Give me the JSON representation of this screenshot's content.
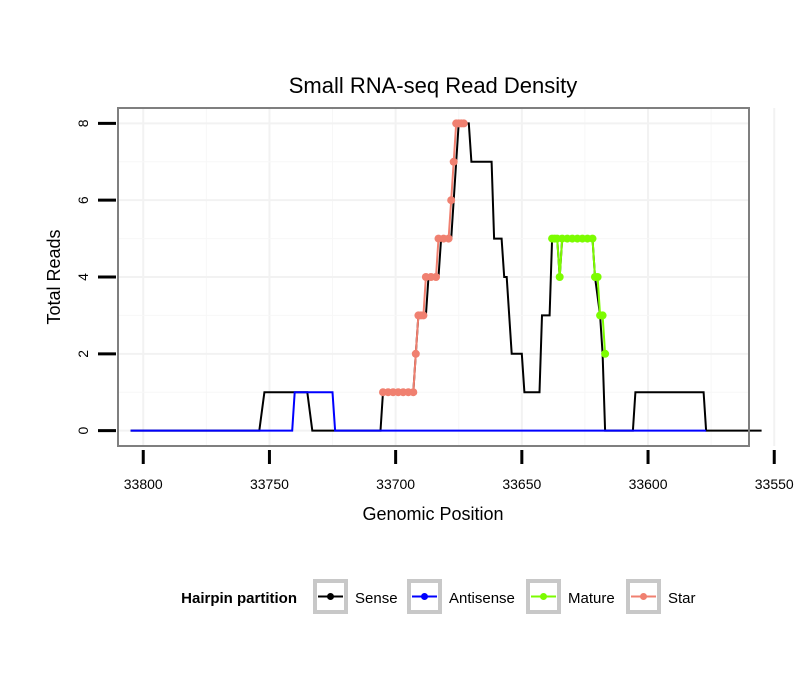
{
  "chart_data": {
    "type": "line",
    "title": "Small RNA-seq Read Density",
    "xlabel": "Genomic Position",
    "ylabel": "Total Reads",
    "xlim": [
      33560,
      33810
    ],
    "ylim": [
      -0.4,
      8.4
    ],
    "x_reversed": true,
    "xticks": [
      33800,
      33750,
      33700,
      33650,
      33600,
      33550
    ],
    "yticks": [
      0,
      2,
      4,
      6,
      8
    ],
    "legend": {
      "title": "Hairpin partition",
      "placement": "bottom",
      "entries": [
        "Sense",
        "Antisense",
        "Mature",
        "Star"
      ]
    },
    "series": [
      {
        "name": "Sense",
        "color": "#000000",
        "style": "line",
        "points": [
          [
            33805,
            0
          ],
          [
            33754,
            0
          ],
          [
            33752,
            1
          ],
          [
            33735,
            1
          ],
          [
            33733,
            0
          ],
          [
            33706,
            0
          ],
          [
            33705,
            1
          ],
          [
            33693,
            1
          ],
          [
            33692,
            2
          ],
          [
            33691,
            3
          ],
          [
            33688,
            3
          ],
          [
            33687,
            4
          ],
          [
            33683,
            4
          ],
          [
            33682,
            5
          ],
          [
            33678,
            5
          ],
          [
            33677,
            6
          ],
          [
            33676,
            7
          ],
          [
            33675,
            8
          ],
          [
            33673,
            8
          ],
          [
            33671,
            8
          ],
          [
            33670,
            7
          ],
          [
            33662,
            7
          ],
          [
            33661,
            5
          ],
          [
            33658,
            5
          ],
          [
            33657,
            4
          ],
          [
            33656,
            4
          ],
          [
            33655,
            3
          ],
          [
            33654,
            2
          ],
          [
            33650,
            2
          ],
          [
            33649,
            1
          ],
          [
            33643,
            1
          ],
          [
            33642,
            3
          ],
          [
            33639,
            3
          ],
          [
            33638,
            5
          ],
          [
            33636,
            5
          ],
          [
            33635,
            4
          ],
          [
            33634,
            5
          ],
          [
            33622,
            5
          ],
          [
            33621,
            4
          ],
          [
            33619,
            3
          ],
          [
            33618,
            2
          ],
          [
            33617,
            0
          ],
          [
            33606,
            0
          ],
          [
            33605,
            1
          ],
          [
            33578,
            1
          ],
          [
            33577,
            0
          ],
          [
            33555,
            0
          ]
        ]
      },
      {
        "name": "Antisense",
        "color": "#0000ff",
        "style": "line",
        "points": [
          [
            33805,
            0
          ],
          [
            33741,
            0
          ],
          [
            33740,
            1
          ],
          [
            33725,
            1
          ],
          [
            33724,
            0
          ],
          [
            33577,
            0
          ]
        ]
      },
      {
        "name": "Mature",
        "color": "#7cfc00",
        "style": "markers-line",
        "points": [
          [
            33638,
            5
          ],
          [
            33637,
            5
          ],
          [
            33636,
            5
          ],
          [
            33635,
            4
          ],
          [
            33634,
            5
          ],
          [
            33632,
            5
          ],
          [
            33630,
            5
          ],
          [
            33628,
            5
          ],
          [
            33626,
            5
          ],
          [
            33624,
            5
          ],
          [
            33622,
            5
          ],
          [
            33621,
            4
          ],
          [
            33620,
            4
          ],
          [
            33619,
            3
          ],
          [
            33618,
            3
          ],
          [
            33617,
            2
          ]
        ]
      },
      {
        "name": "Star",
        "color": "#f08070",
        "style": "markers-line",
        "points": [
          [
            33705,
            1
          ],
          [
            33703,
            1
          ],
          [
            33701,
            1
          ],
          [
            33699,
            1
          ],
          [
            33697,
            1
          ],
          [
            33695,
            1
          ],
          [
            33693,
            1
          ],
          [
            33692,
            2
          ],
          [
            33691,
            3
          ],
          [
            33690,
            3
          ],
          [
            33689,
            3
          ],
          [
            33688,
            4
          ],
          [
            33686,
            4
          ],
          [
            33684,
            4
          ],
          [
            33683,
            5
          ],
          [
            33681,
            5
          ],
          [
            33679,
            5
          ],
          [
            33678,
            6
          ],
          [
            33677,
            7
          ],
          [
            33676,
            8
          ],
          [
            33675,
            8
          ],
          [
            33674,
            8
          ],
          [
            33673,
            8
          ]
        ]
      }
    ]
  }
}
